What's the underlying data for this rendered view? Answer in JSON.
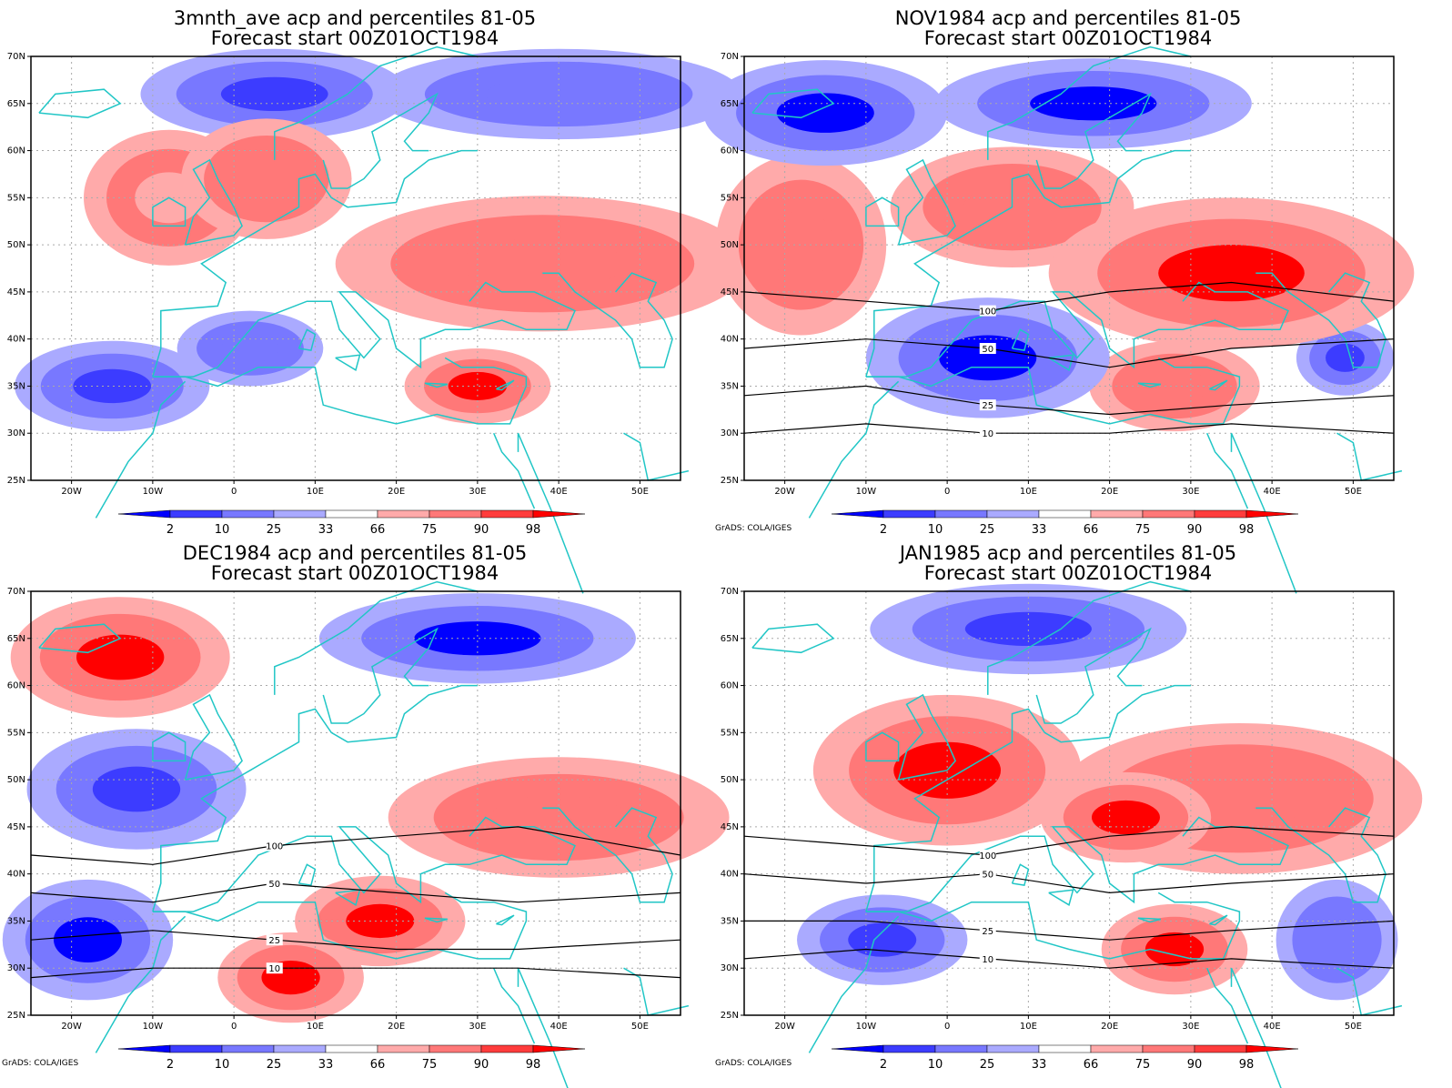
{
  "panels": [
    {
      "id": "p1",
      "title": "3mnth_ave acp and percentiles 81-05",
      "subtitle": "Forecast start 00Z01OCT1984",
      "credit": ""
    },
    {
      "id": "p2",
      "title": "NOV1984 acp and percentiles 81-05",
      "subtitle": "Forecast start 00Z01OCT1984",
      "credit": "GrADS: COLA/IGES"
    },
    {
      "id": "p3",
      "title": "DEC1984 acp and percentiles 81-05",
      "subtitle": "Forecast start 00Z01OCT1984",
      "credit": "GrADS: COLA/IGES"
    },
    {
      "id": "p4",
      "title": "JAN1985 acp and percentiles 81-05",
      "subtitle": "Forecast start 00Z01OCT1984",
      "credit": "GrADS: COLA/IGES"
    }
  ],
  "axes": {
    "x_ticks": [
      "20W",
      "10W",
      "0",
      "10E",
      "20E",
      "30E",
      "40E",
      "50E"
    ],
    "x_values": [
      -20,
      -10,
      0,
      10,
      20,
      30,
      40,
      50
    ],
    "y_ticks": [
      "70N",
      "65N",
      "60N",
      "55N",
      "50N",
      "45N",
      "40N",
      "35N",
      "30N",
      "25N"
    ],
    "y_values": [
      70,
      65,
      60,
      55,
      50,
      45,
      40,
      35,
      30,
      25
    ],
    "lon_range": [
      -25,
      55
    ],
    "lat_range": [
      25,
      70
    ]
  },
  "colorbar": {
    "labels": [
      "2",
      "10",
      "25",
      "33",
      "66",
      "75",
      "90",
      "98"
    ],
    "colors": [
      "#0000ff",
      "#3c3cff",
      "#7878ff",
      "#aaaaff",
      "#ffffff",
      "#ffaaaa",
      "#ff7878",
      "#ff3c3c",
      "#ff0000"
    ]
  },
  "colors": {
    "coast": "#21c6c6",
    "contour": "#000000",
    "grid": "#aaaaaa"
  },
  "chart_data": [
    {
      "type": "heatmap",
      "panel": "3mnth_ave",
      "blobs": [
        {
          "lon": 5,
          "lat": 66,
          "w": 22,
          "h": 6,
          "pct": 10
        },
        {
          "lon": 40,
          "lat": 66,
          "w": 30,
          "h": 6,
          "pct": 25
        },
        {
          "lon": -8,
          "lat": 55,
          "w": 14,
          "h": 9,
          "pct": 75
        },
        {
          "lon": 4,
          "lat": 57,
          "w": 14,
          "h": 8,
          "pct": 90
        },
        {
          "lon": 38,
          "lat": 48,
          "w": 34,
          "h": 9,
          "pct": 90
        },
        {
          "lon": 30,
          "lat": 35,
          "w": 12,
          "h": 5,
          "pct": 98
        },
        {
          "lon": -15,
          "lat": 35,
          "w": 16,
          "h": 6,
          "pct": 10
        },
        {
          "lon": 2,
          "lat": 39,
          "w": 12,
          "h": 5,
          "pct": 25
        }
      ],
      "contours": []
    },
    {
      "type": "heatmap",
      "panel": "NOV1984",
      "blobs": [
        {
          "lon": -15,
          "lat": 64,
          "w": 20,
          "h": 7,
          "pct": 2
        },
        {
          "lon": 18,
          "lat": 65,
          "w": 26,
          "h": 6,
          "pct": 2
        },
        {
          "lon": -18,
          "lat": 50,
          "w": 14,
          "h": 12,
          "pct": 90
        },
        {
          "lon": 8,
          "lat": 54,
          "w": 20,
          "h": 8,
          "pct": 90
        },
        {
          "lon": 35,
          "lat": 47,
          "w": 30,
          "h": 10,
          "pct": 98
        },
        {
          "lon": 5,
          "lat": 38,
          "w": 20,
          "h": 8,
          "pct": 2
        },
        {
          "lon": 28,
          "lat": 35,
          "w": 14,
          "h": 6,
          "pct": 90
        },
        {
          "lon": 49,
          "lat": 38,
          "w": 8,
          "h": 5,
          "pct": 10
        }
      ],
      "contours": [
        {
          "level": "100",
          "x": [
            -25,
            -10,
            5,
            20,
            35,
            55
          ],
          "y": [
            45,
            44,
            43,
            45,
            46,
            44
          ]
        },
        {
          "level": "50",
          "x": [
            -25,
            -10,
            5,
            20,
            35,
            55
          ],
          "y": [
            39,
            40,
            39,
            37,
            39,
            40
          ]
        },
        {
          "level": "25",
          "x": [
            -25,
            -10,
            5,
            20,
            35,
            55
          ],
          "y": [
            34,
            35,
            33,
            32,
            33,
            34
          ]
        },
        {
          "level": "10",
          "x": [
            -25,
            -10,
            5,
            20,
            35,
            55
          ],
          "y": [
            30,
            31,
            30,
            30,
            31,
            30
          ]
        }
      ]
    },
    {
      "type": "heatmap",
      "panel": "DEC1984",
      "blobs": [
        {
          "lon": -14,
          "lat": 63,
          "w": 18,
          "h": 8,
          "pct": 98
        },
        {
          "lon": 30,
          "lat": 65,
          "w": 26,
          "h": 6,
          "pct": 2
        },
        {
          "lon": -12,
          "lat": 49,
          "w": 18,
          "h": 8,
          "pct": 10
        },
        {
          "lon": 18,
          "lat": 35,
          "w": 14,
          "h": 6,
          "pct": 98
        },
        {
          "lon": 7,
          "lat": 29,
          "w": 12,
          "h": 6,
          "pct": 98
        },
        {
          "lon": -18,
          "lat": 33,
          "w": 14,
          "h": 8,
          "pct": 2
        },
        {
          "lon": 40,
          "lat": 46,
          "w": 28,
          "h": 8,
          "pct": 90
        }
      ],
      "contours": [
        {
          "level": "100",
          "x": [
            -25,
            -10,
            5,
            20,
            35,
            55
          ],
          "y": [
            42,
            41,
            43,
            44,
            45,
            42
          ]
        },
        {
          "level": "50",
          "x": [
            -25,
            -10,
            5,
            20,
            35,
            55
          ],
          "y": [
            38,
            37,
            39,
            38,
            37,
            38
          ]
        },
        {
          "level": "25",
          "x": [
            -25,
            -10,
            5,
            20,
            35,
            55
          ],
          "y": [
            33,
            34,
            33,
            32,
            32,
            33
          ]
        },
        {
          "level": "10",
          "x": [
            -25,
            -10,
            5,
            20,
            35,
            55
          ],
          "y": [
            29,
            30,
            30,
            30,
            30,
            29
          ]
        }
      ]
    },
    {
      "type": "heatmap",
      "panel": "JAN1985",
      "blobs": [
        {
          "lon": 0,
          "lat": 51,
          "w": 22,
          "h": 10,
          "pct": 98
        },
        {
          "lon": 22,
          "lat": 46,
          "w": 14,
          "h": 6,
          "pct": 98
        },
        {
          "lon": 36,
          "lat": 48,
          "w": 30,
          "h": 10,
          "pct": 90
        },
        {
          "lon": 28,
          "lat": 32,
          "w": 12,
          "h": 6,
          "pct": 98
        },
        {
          "lon": 10,
          "lat": 66,
          "w": 26,
          "h": 6,
          "pct": 10
        },
        {
          "lon": -8,
          "lat": 33,
          "w": 14,
          "h": 6,
          "pct": 10
        },
        {
          "lon": 48,
          "lat": 33,
          "w": 10,
          "h": 8,
          "pct": 25
        }
      ],
      "contours": [
        {
          "level": "100",
          "x": [
            -25,
            -10,
            5,
            20,
            35,
            55
          ],
          "y": [
            44,
            43,
            42,
            44,
            45,
            44
          ]
        },
        {
          "level": "50",
          "x": [
            -25,
            -10,
            5,
            20,
            35,
            55
          ],
          "y": [
            40,
            39,
            40,
            38,
            39,
            40
          ]
        },
        {
          "level": "25",
          "x": [
            -25,
            -10,
            5,
            20,
            35,
            55
          ],
          "y": [
            35,
            35,
            34,
            33,
            34,
            35
          ]
        },
        {
          "level": "10",
          "x": [
            -25,
            -10,
            5,
            20,
            35,
            55
          ],
          "y": [
            31,
            32,
            31,
            30,
            31,
            30
          ]
        }
      ]
    }
  ]
}
